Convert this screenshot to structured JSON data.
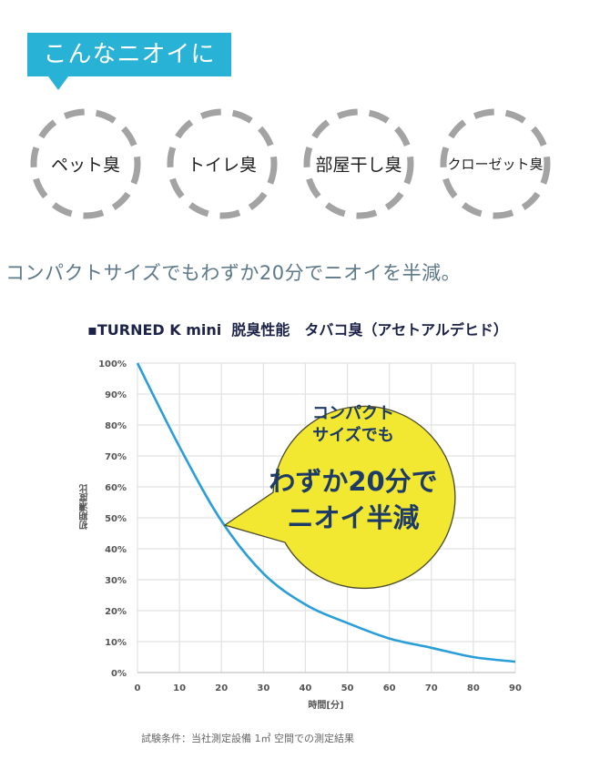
{
  "header_tag": {
    "label": "こんなニオイに",
    "color": "#27b2d6"
  },
  "odor_types": [
    {
      "label": "ペット臭"
    },
    {
      "label": "トイレ臭"
    },
    {
      "label": "部屋干し臭"
    },
    {
      "label": "クローゼット臭"
    }
  ],
  "headline": "コンパクトサイズでもわずか20分でニオイを半減。",
  "chart_title": "▪TURNED K mini  脱臭性能　タバコ臭（アセトアルデヒド）",
  "callout": {
    "line1": "コンパクト",
    "line2": "サイズでも",
    "line3": "わずか20分で",
    "line4": "ニオイ半減",
    "fill": "#f2e832",
    "text_color": "#1d3b66"
  },
  "footnote": "試験条件：当社測定設備 1㎥ 空間での測定結果",
  "chart_data": {
    "type": "line",
    "title": "TURNED K mini 脱臭性能 タバコ臭（アセトアルデヒド）",
    "xlabel": "時間[分]",
    "ylabel": "初期濃度比",
    "x": [
      0,
      10,
      20,
      30,
      40,
      50,
      60,
      70,
      80,
      90
    ],
    "series": [
      {
        "name": "タバコ臭（アセトアルデヒド）",
        "color": "#2a9ed8",
        "values": [
          100,
          73,
          49,
          32,
          22,
          16,
          11,
          8,
          5,
          3.5
        ]
      }
    ],
    "xticks": [
      "0",
      "10",
      "20",
      "30",
      "40",
      "50",
      "60",
      "70",
      "80",
      "90"
    ],
    "yticks": [
      "0%",
      "10%",
      "20%",
      "30%",
      "40%",
      "50%",
      "60%",
      "70%",
      "80%",
      "90%",
      "100%"
    ],
    "xlim": [
      0,
      90
    ],
    "ylim": [
      0,
      100
    ],
    "grid": true,
    "annotation": "コンパクトサイズでも わずか20分で ニオイ半減 (pointing at 20分, ~47%)"
  }
}
